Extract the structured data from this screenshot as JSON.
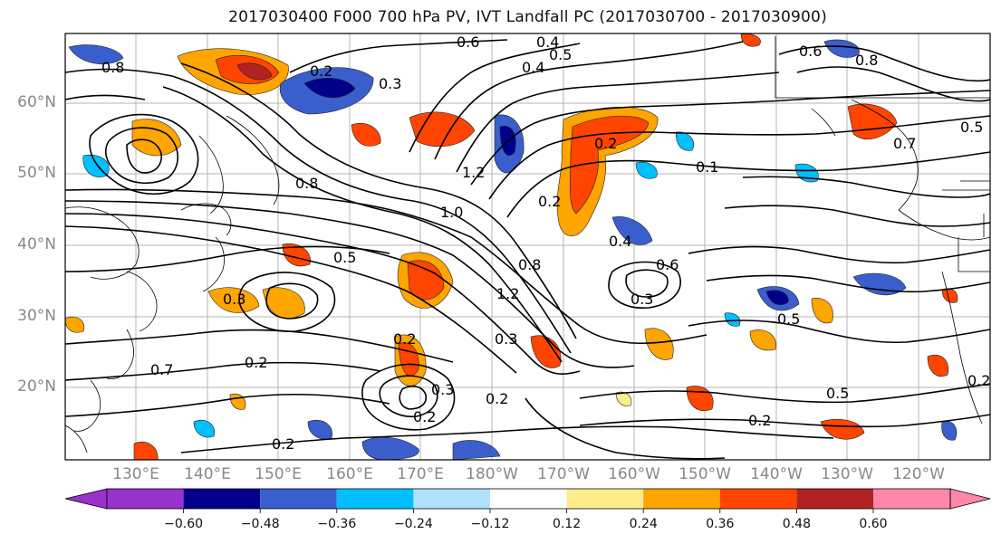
{
  "title": "2017030400 F000 700 hPa PV, IVT Landfall PC (2017030700 - 2017030900)",
  "lat_labels": [
    "60°N",
    "50°N",
    "40°N",
    "30°N",
    "20°N"
  ],
  "lon_labels": [
    "130°E",
    "140°E",
    "150°E",
    "160°E",
    "170°E",
    "180°W",
    "170°W",
    "160°W",
    "150°W",
    "140°W",
    "130°W",
    "120°W"
  ],
  "colorbar": {
    "ticks": [
      "−0.60",
      "−0.48",
      "−0.36",
      "−0.24",
      "−0.12",
      "0.12",
      "0.24",
      "0.36",
      "0.48",
      "0.60"
    ],
    "colors": [
      "#9932cc",
      "#00008b",
      "#3a5fcd",
      "#00bfff",
      "#b0e2ff",
      "#ffffff",
      "#ffec8b",
      "#ffa500",
      "#ff4500",
      "#b22222",
      "#ff88aa"
    ]
  },
  "contour_labels": [
    "0.6",
    "0.4",
    "0.5",
    "0.8",
    "0.2",
    "0.3",
    "0.8",
    "0.5",
    "0.4",
    "0.6",
    "0.7",
    "0.1",
    "0.2",
    "0.4",
    "0.8",
    "0.2",
    "0.5",
    "0.3",
    "0.3",
    "0.6",
    "0.5",
    "0.2",
    "0.7",
    "0.2",
    "0.2",
    "0.2",
    "0.3",
    "0.2",
    "0.2",
    "0.5",
    "0.2",
    "0.3",
    "1.2",
    "1.0",
    "0.8",
    "1.2"
  ]
}
